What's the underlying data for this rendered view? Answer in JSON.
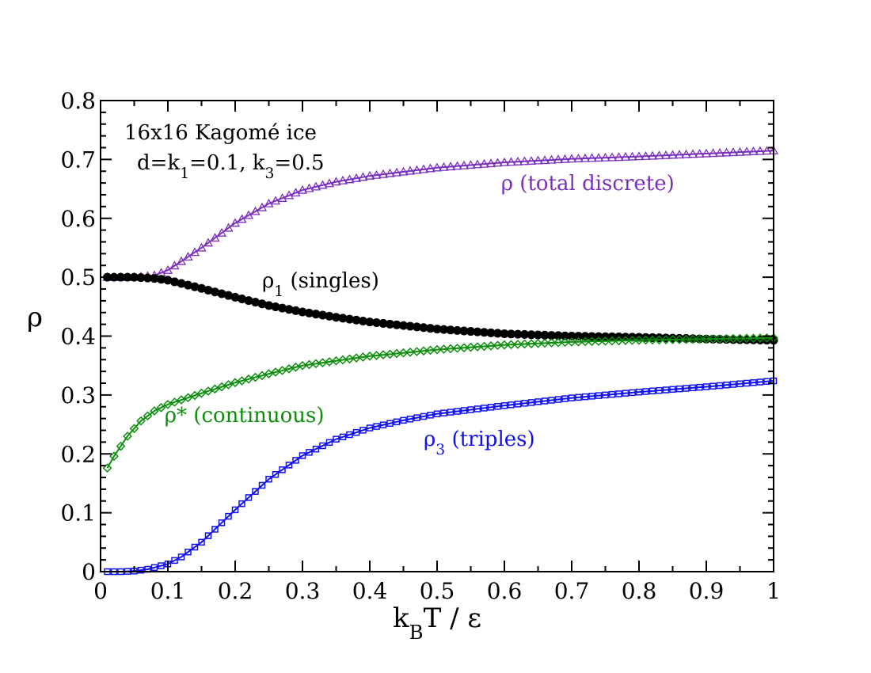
{
  "colors": {
    "singles": "#000000",
    "total": "#7b2fbf",
    "continuous": "#0b8f0b",
    "triples": "#1010f0",
    "axes": "#000000"
  },
  "chart_data": {
    "type": "scatter",
    "title": "",
    "xlabel": {
      "main": "k",
      "sub": "B",
      "rest": "T / ε"
    },
    "ylabel": "ρ",
    "xlim": [
      0,
      1
    ],
    "ylim": [
      0,
      0.8
    ],
    "grid": false,
    "xticks": [
      0,
      0.1,
      0.2,
      0.3,
      0.4,
      0.5,
      0.6,
      0.7,
      0.8,
      0.9,
      1.0
    ],
    "xtick_labels": [
      "0",
      "0.1",
      "0.2",
      "0.3",
      "0.4",
      "0.5",
      "0.6",
      "0.7",
      "0.8",
      "0.9",
      "1"
    ],
    "yticks": [
      0,
      0.1,
      0.2,
      0.3,
      0.4,
      0.5,
      0.6,
      0.7,
      0.8
    ],
    "ytick_labels": [
      "0",
      "0.1",
      "0.2",
      "0.3",
      "0.4",
      "0.5",
      "0.6",
      "0.7",
      "0.8"
    ],
    "info_box": {
      "line1": "16x16 Kagomé ice",
      "line2_a": "d=k",
      "line2_sub1": "1",
      "line2_b": "=0.1, k",
      "line2_sub2": "3",
      "line2_c": "=0.5"
    },
    "x_sampling": {
      "start": 0.01,
      "end": 1.0,
      "step": 0.01
    },
    "series": [
      {
        "name": "total",
        "marker": "triangle",
        "label": {
          "main": "ρ (total discrete)",
          "sub": "",
          "rest": ""
        },
        "label_anchor": [
          0.595,
          0.648
        ],
        "knots_x": [
          0.01,
          0.05,
          0.08,
          0.1,
          0.12,
          0.15,
          0.2,
          0.25,
          0.3,
          0.35,
          0.4,
          0.5,
          0.6,
          0.7,
          0.8,
          0.9,
          1.0
        ],
        "knots_y": [
          0.5,
          0.5,
          0.503,
          0.512,
          0.527,
          0.55,
          0.592,
          0.625,
          0.648,
          0.662,
          0.672,
          0.686,
          0.695,
          0.701,
          0.705,
          0.71,
          0.715
        ]
      },
      {
        "name": "singles",
        "marker": "circle",
        "label": {
          "main": "ρ",
          "sub": "1",
          "rest": " (singles)"
        },
        "label_anchor": [
          0.24,
          0.483
        ],
        "knots_x": [
          0.01,
          0.05,
          0.08,
          0.1,
          0.15,
          0.2,
          0.25,
          0.3,
          0.35,
          0.4,
          0.5,
          0.6,
          0.7,
          0.8,
          0.9,
          1.0
        ],
        "knots_y": [
          0.5,
          0.5,
          0.498,
          0.495,
          0.481,
          0.466,
          0.452,
          0.441,
          0.432,
          0.424,
          0.412,
          0.404,
          0.4,
          0.398,
          0.395,
          0.393
        ]
      },
      {
        "name": "continuous",
        "marker": "diamond",
        "label": {
          "main": "ρ* (continuous)",
          "sub": "",
          "rest": ""
        },
        "label_anchor": [
          0.095,
          0.254
        ],
        "knots_x": [
          0.01,
          0.02,
          0.04,
          0.06,
          0.08,
          0.1,
          0.15,
          0.2,
          0.25,
          0.3,
          0.4,
          0.5,
          0.6,
          0.7,
          0.8,
          0.9,
          1.0
        ],
        "knots_y": [
          0.176,
          0.196,
          0.23,
          0.256,
          0.273,
          0.284,
          0.303,
          0.321,
          0.336,
          0.35,
          0.366,
          0.377,
          0.385,
          0.39,
          0.393,
          0.395,
          0.397
        ]
      },
      {
        "name": "triples",
        "marker": "square",
        "label": {
          "main": "ρ",
          "sub": "3",
          "rest": " (triples)"
        },
        "label_anchor": [
          0.48,
          0.214
        ],
        "knots_x": [
          0.01,
          0.03,
          0.05,
          0.07,
          0.1,
          0.12,
          0.15,
          0.2,
          0.25,
          0.3,
          0.35,
          0.4,
          0.45,
          0.5,
          0.6,
          0.7,
          0.8,
          0.9,
          1.0
        ],
        "knots_y": [
          0.0,
          0.0,
          0.001,
          0.004,
          0.013,
          0.025,
          0.05,
          0.105,
          0.157,
          0.197,
          0.225,
          0.244,
          0.257,
          0.268,
          0.282,
          0.295,
          0.305,
          0.314,
          0.324
        ]
      }
    ]
  }
}
